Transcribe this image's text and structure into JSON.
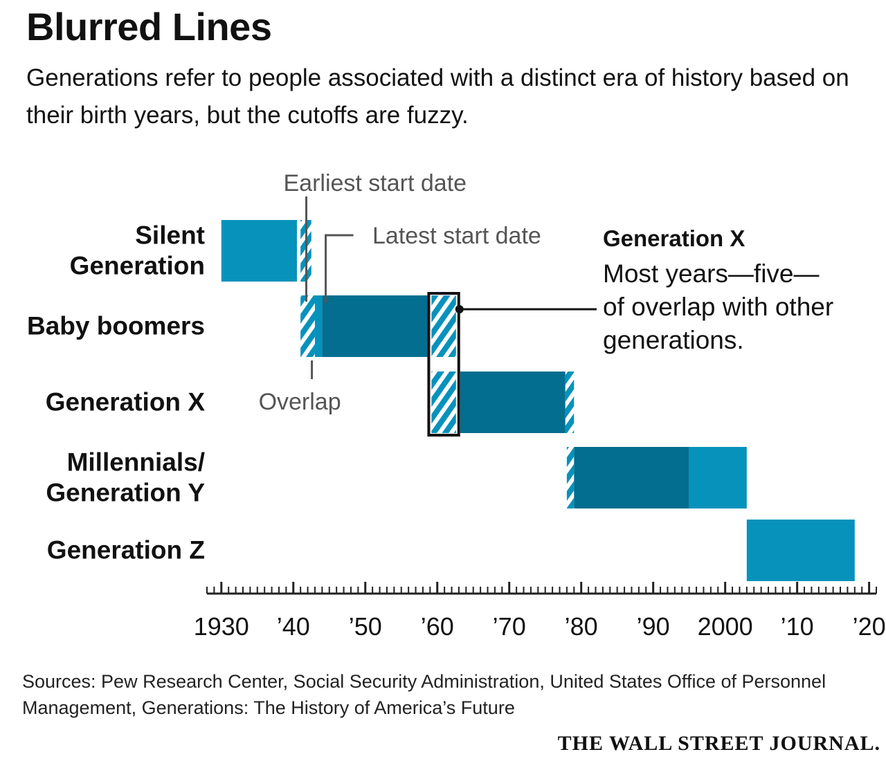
{
  "title": "Blurred Lines",
  "subtitle": "Generations refer to people associated with a distinct era of history based on their birth years, but the cutoffs are fuzzy.",
  "sources": "Sources: Pew Research Center, Social Security Administration, United States Office of Personnel Management, Generations: The History of America’s Future",
  "publisher": "THE WALL STREET JOURNAL.",
  "colors": {
    "light_blue": "#0792bb",
    "dark_blue": "#036e90",
    "hatch_stripe": "#0792bb",
    "axis": "#222222",
    "annotation_gray": "#555555"
  },
  "chart_data": {
    "type": "range-bar",
    "x_axis": {
      "min": 1928,
      "max": 2021,
      "tick_values": [
        1930,
        1940,
        1950,
        1960,
        1970,
        1980,
        1990,
        2000,
        2010,
        2020
      ],
      "tick_labels": [
        "1930",
        "’40",
        "’50",
        "’60",
        "’70",
        "’80",
        "’90",
        "2000",
        "’10",
        "’20"
      ],
      "minor_ticks_every": 1
    },
    "generations": [
      {
        "name": "Silent Generation",
        "label_lines": [
          "Silent",
          "Generation"
        ],
        "segments": [
          {
            "start": 1930,
            "end": 1940.5,
            "style": "light"
          },
          {
            "start": 1941,
            "end": 1942.5,
            "style": "hatch"
          }
        ]
      },
      {
        "name": "Baby boomers",
        "label_lines": [
          "Baby boomers"
        ],
        "segments": [
          {
            "start": 1941,
            "end": 1943,
            "style": "hatch"
          },
          {
            "start": 1943,
            "end": 1944,
            "style": "light"
          },
          {
            "start": 1944,
            "end": 1958.7,
            "style": "dark"
          },
          {
            "start": 1959.2,
            "end": 1962.6,
            "style": "hatch"
          }
        ]
      },
      {
        "name": "Generation X",
        "label_lines": [
          "Generation X"
        ],
        "segments": [
          {
            "start": 1959.2,
            "end": 1962.6,
            "style": "hatch"
          },
          {
            "start": 1963.2,
            "end": 1977.8,
            "style": "dark"
          },
          {
            "start": 1977.8,
            "end": 1979,
            "style": "hatch"
          }
        ]
      },
      {
        "name": "Millennials/Generation Y",
        "label_lines": [
          "Millennials/",
          "Generation Y"
        ],
        "segments": [
          {
            "start": 1978,
            "end": 1979,
            "style": "hatch"
          },
          {
            "start": 1979,
            "end": 1995,
            "style": "dark"
          },
          {
            "start": 1995,
            "end": 2003,
            "style": "light"
          }
        ]
      },
      {
        "name": "Generation Z",
        "label_lines": [
          "Generation Z"
        ],
        "segments": [
          {
            "start": 2003,
            "end": 2018,
            "style": "light"
          }
        ]
      }
    ],
    "annotations": {
      "earliest_start": {
        "text": "Earliest start date",
        "year": 1941.8
      },
      "latest_start": {
        "text": "Latest start date",
        "year": 1944.5
      },
      "overlap": {
        "text": "Overlap",
        "year": 1942
      },
      "highlight": {
        "heading": "Generation X",
        "lines": [
          "Most years—five—",
          "of overlap with other",
          "generations."
        ],
        "start": 1959.2,
        "end": 1962.6
      }
    }
  }
}
